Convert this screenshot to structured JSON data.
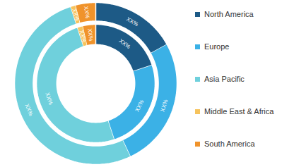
{
  "chart_data": {
    "type": "donut",
    "categories": [
      "North America",
      "Europe",
      "Asia Pacific",
      "Middle East & Africa",
      "South America"
    ],
    "colors": [
      "#1d5a86",
      "#3bb1e6",
      "#6fd0dc",
      "#f6c35c",
      "#f0932b"
    ],
    "legend": "right",
    "data_labels": true,
    "series": [
      {
        "values": [
          17,
          26,
          52,
          1,
          4
        ],
        "value_labels": [
          "XX%",
          "XX%",
          "XX%",
          "XX%",
          "XX%"
        ]
      },
      {
        "values": [
          20,
          25,
          50,
          1.5,
          3.5
        ],
        "value_labels": [
          "XX%",
          "XX%",
          "XX%",
          "XX%",
          "XX%"
        ]
      }
    ]
  }
}
